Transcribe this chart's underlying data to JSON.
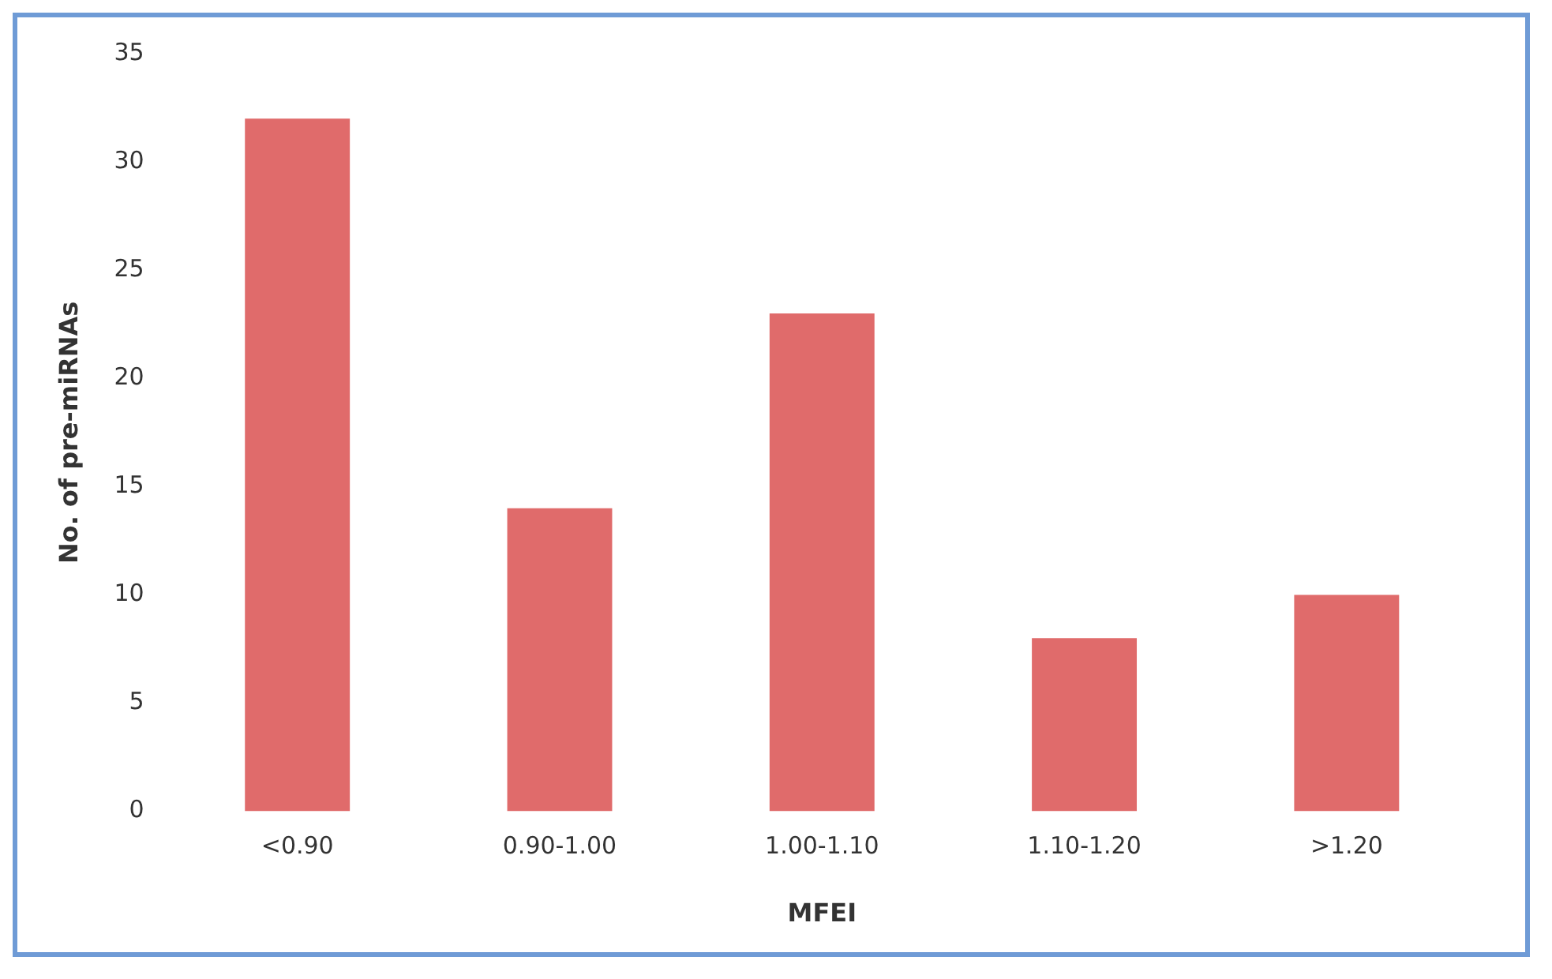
{
  "chart_data": {
    "type": "bar",
    "xlabel": "MFEI",
    "ylabel": "No. of pre-miRNAs",
    "categories": [
      "<0.90",
      "0.90-1.00",
      "1.00-1.10",
      "1.10-1.20",
      ">1.20"
    ],
    "values": [
      32,
      14,
      23,
      8,
      10
    ],
    "color": "#e06b6b",
    "ylim": [
      0,
      35
    ],
    "yticks": [
      0,
      5,
      10,
      15,
      20,
      25,
      30,
      35
    ],
    "grid": false,
    "legend": false
  }
}
